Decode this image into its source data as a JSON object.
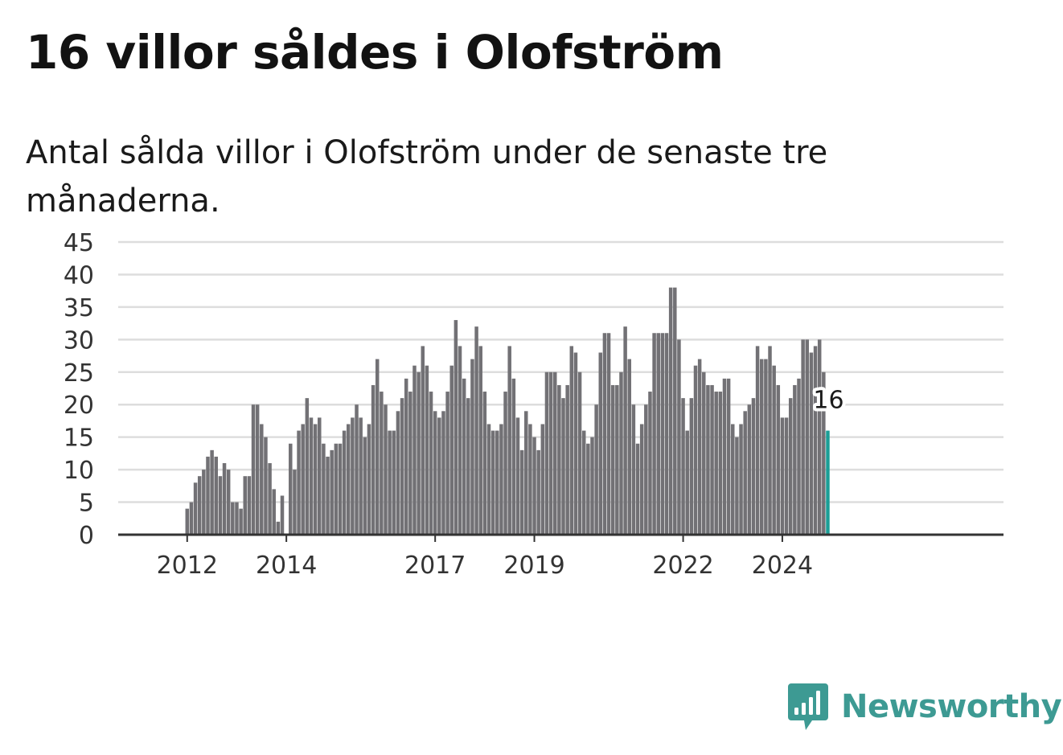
{
  "title": "16 villor såldes i Olofström",
  "subtitle": "Antal sålda villor i Olofström under de senaste tre månaderna.",
  "logo": {
    "text": "Newsworthy",
    "icon": "bar-chart-speech-bubble-icon"
  },
  "colors": {
    "bar": "#727175",
    "highlight": "#1b9e96",
    "grid": "#dddddd",
    "axis": "#333333"
  },
  "chart_data": {
    "type": "bar",
    "title": "16 villor såldes i Olofström",
    "subtitle": "Antal sålda villor i Olofström under de senaste tre månaderna.",
    "xlabel": "",
    "ylabel": "",
    "ylim": [
      0,
      45
    ],
    "yticks": [
      "0",
      "5",
      "10",
      "15",
      "20",
      "25",
      "30",
      "35",
      "40",
      "45"
    ],
    "xticks": [
      {
        "label": "2012",
        "index": 7
      },
      {
        "label": "2014",
        "index": 31
      },
      {
        "label": "2017",
        "index": 67
      },
      {
        "label": "2019",
        "index": 91
      },
      {
        "label": "2022",
        "index": 127
      },
      {
        "label": "2024",
        "index": 151
      }
    ],
    "grid": true,
    "series": [
      {
        "values": [
          0,
          0,
          0,
          0,
          0,
          0,
          0,
          4,
          5,
          8,
          9,
          10,
          12,
          13,
          12,
          9,
          11,
          10,
          5,
          5,
          4,
          9,
          9,
          20,
          20,
          17,
          15,
          11,
          7,
          2,
          6,
          0,
          14,
          10,
          16,
          17,
          21,
          18,
          17,
          18,
          14,
          12,
          13,
          14,
          14,
          16,
          17,
          18,
          20,
          18,
          15,
          17,
          23,
          27,
          22,
          20,
          16,
          16,
          19,
          21,
          24,
          22,
          26,
          25,
          29,
          26,
          22,
          19,
          18,
          19,
          22,
          26,
          33,
          29,
          24,
          21,
          27,
          32,
          29,
          22,
          17,
          16,
          16,
          17,
          22,
          29,
          24,
          18,
          13,
          19,
          17,
          15,
          13,
          17,
          25,
          25,
          25,
          23,
          21,
          23,
          29,
          28,
          25,
          16,
          14,
          15,
          20,
          28,
          31,
          31,
          23,
          23,
          25,
          32,
          27,
          20,
          14,
          17,
          20,
          22,
          31,
          31,
          31,
          31,
          38,
          38,
          30,
          21,
          16,
          21,
          26,
          27,
          25,
          23,
          23,
          22,
          22,
          24,
          24,
          17,
          15,
          17,
          19,
          20,
          21,
          29,
          27,
          27,
          29,
          26,
          23,
          18,
          18,
          21,
          23,
          24,
          30,
          30,
          28,
          29,
          30,
          25,
          16
        ]
      }
    ],
    "highlight": {
      "index": 162,
      "label": "16"
    }
  }
}
